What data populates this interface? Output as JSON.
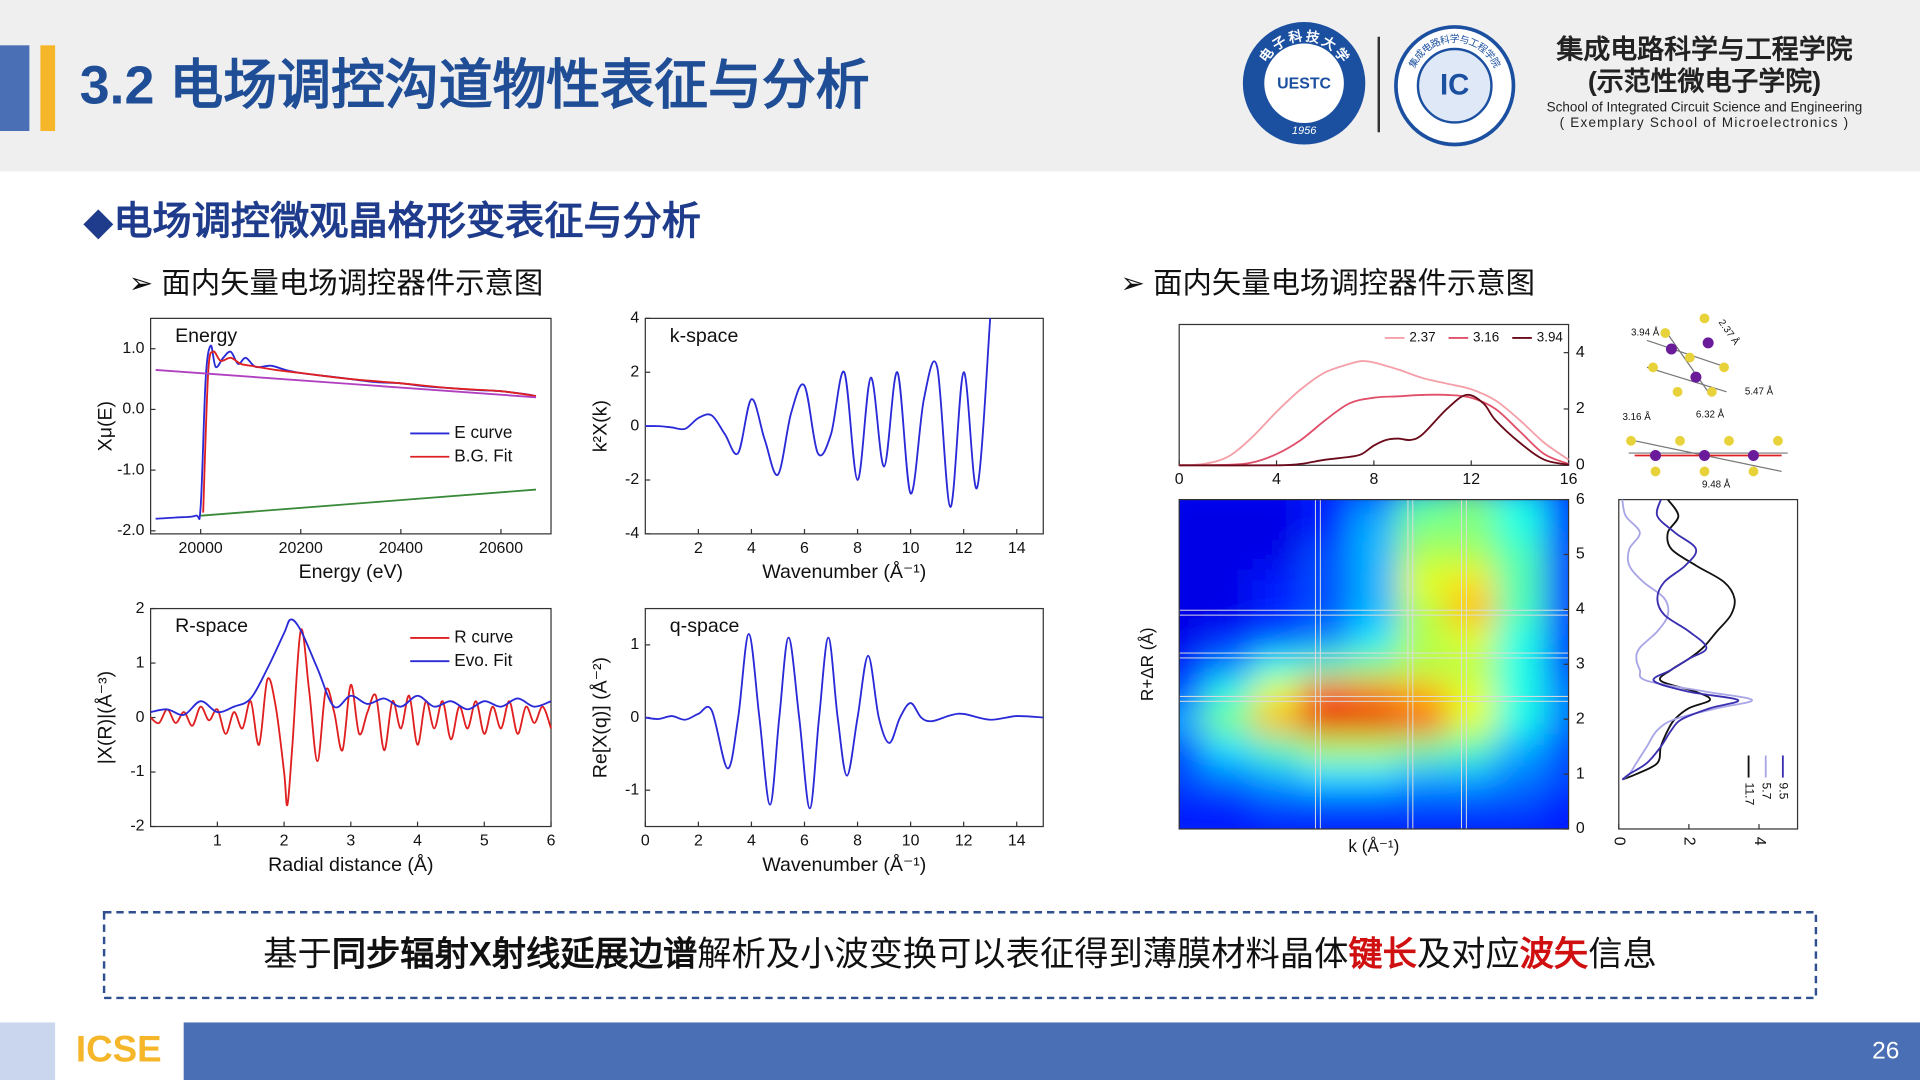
{
  "header": {
    "title": "3.2 电场调控沟道物性表征与分析",
    "logo_left": {
      "ring": "电 子 科 技 大 学",
      "center": "UESTC",
      "year": "1956"
    },
    "logo_right": {
      "ring": "集成电路科学与工程学院",
      "center": "IC"
    },
    "school_cn": "集成电路科学与工程学院",
    "school_cn_sub": "(示范性微电子学院)",
    "school_en": "School of Integrated Circuit Science and Engineering",
    "school_en_sub": "( Exemplary School of Microelectronics )"
  },
  "section": "◆电场调控微观晶格形变表征与分析",
  "subheads": [
    "➢ 面内矢量电场调控器件示意图",
    "➢ 面内矢量电场调控器件示意图"
  ],
  "structure_labels": [
    "3.94 Å",
    "2.37 Å",
    "5.47 Å",
    "3.16 Å",
    "6.32 Å",
    "9.48 Å"
  ],
  "summary": [
    {
      "text": "基于"
    },
    {
      "text": "同步辐射X射线延展边谱",
      "emphasis": "bold"
    },
    {
      "text": "解析及小波变换可以表征得到薄膜材料晶体"
    },
    {
      "text": "键长",
      "emphasis": "red"
    },
    {
      "text": "及对应"
    },
    {
      "text": "波矢",
      "emphasis": "red"
    },
    {
      "text": "信息"
    }
  ],
  "footer": {
    "brand": "ICSE",
    "page": "26"
  },
  "chart_data": [
    {
      "type": "line",
      "label": "Energy",
      "xlabel": "Energy (eV)",
      "ylabel": "Xμ(E)",
      "xlim": [
        19900,
        20700
      ],
      "ylim": [
        -2.05,
        1.5
      ],
      "xticks": [
        20000,
        20200,
        20400,
        20600
      ],
      "yticks": [
        {
          "value": 1,
          "label": "1.0"
        },
        {
          "value": 0,
          "label": "0.0"
        },
        {
          "value": -1,
          "label": "-1.0"
        },
        {
          "value": -2,
          "label": "-2.0"
        }
      ],
      "legend": "lower right",
      "series": [
        {
          "name": "E curve",
          "color": "#2a2ad8",
          "x": [
            19910,
            19950,
            19990,
            20000,
            20010,
            20020,
            20030,
            20045,
            20060,
            20075,
            20090,
            20110,
            20140,
            20170,
            20200,
            20250,
            20300,
            20350,
            20400,
            20450,
            20500,
            20550,
            20600,
            20650,
            20670
          ],
          "values": [
            -1.8,
            -1.78,
            -1.75,
            -1.6,
            0.5,
            1.05,
            0.7,
            0.85,
            0.95,
            0.75,
            0.85,
            0.7,
            0.72,
            0.65,
            0.6,
            0.55,
            0.5,
            0.45,
            0.43,
            0.38,
            0.35,
            0.32,
            0.3,
            0.25,
            0.22
          ]
        },
        {
          "name": "B.G. Fit",
          "color": "#e02020",
          "x": [
            20005,
            20015,
            20025,
            20040,
            20060,
            20080,
            20100,
            20150,
            20200,
            20300,
            20400,
            20500,
            20600,
            20670
          ],
          "values": [
            -1.7,
            0.6,
            0.95,
            0.8,
            0.85,
            0.75,
            0.72,
            0.65,
            0.6,
            0.5,
            0.43,
            0.35,
            0.3,
            0.22
          ]
        },
        {
          "color": "#b040c0",
          "x": [
            19910,
            20670
          ],
          "values": [
            0.65,
            0.2
          ]
        },
        {
          "color": "#3a8a3a",
          "x": [
            20000,
            20670
          ],
          "values": [
            -1.75,
            -1.32
          ]
        }
      ]
    },
    {
      "type": "line",
      "label": "k-space",
      "xlabel": "Wavenumber (Å⁻¹)",
      "ylabel": "k²X(k)",
      "xlim": [
        0,
        15
      ],
      "ylim": [
        -4,
        4
      ],
      "xticks": [
        2,
        4,
        6,
        8,
        10,
        12,
        14
      ],
      "yticks": [
        -4,
        -2,
        0,
        2,
        4
      ],
      "x": [
        0,
        0.5,
        1,
        1.5,
        2,
        2.5,
        3,
        3.5,
        4,
        4.5,
        5,
        5.5,
        6,
        6.5,
        7,
        7.5,
        8,
        8.5,
        9,
        9.5,
        10,
        10.5,
        11,
        11.5,
        12,
        12.5,
        13
      ],
      "series": [
        {
          "color": "#2a2ad8",
          "values": [
            0,
            0,
            -0.05,
            -0.1,
            0.3,
            0.4,
            -0.3,
            -1,
            1,
            -0.5,
            -1.8,
            0.5,
            1.5,
            -1,
            -0.3,
            2,
            -2,
            1.8,
            -1.5,
            2,
            -2.5,
            1,
            2.2,
            -3,
            2,
            -2.3,
            4
          ]
        }
      ]
    },
    {
      "type": "line",
      "label": "R-space",
      "xlabel": "Radial distance (Å)",
      "ylabel": "|X(R)|(Å⁻³)",
      "xlim": [
        0,
        6
      ],
      "ylim": [
        -2,
        2
      ],
      "xticks": [
        1,
        2,
        3,
        4,
        5,
        6
      ],
      "yticks": [
        -2,
        -1,
        0,
        1,
        2
      ],
      "legend": "upper right",
      "series": [
        {
          "name": "R curve",
          "color": "#e02020",
          "x": [
            0,
            0.125,
            0.25,
            0.375,
            0.5,
            0.625,
            0.75,
            0.875,
            1,
            1.125,
            1.25,
            1.375,
            1.5,
            1.625,
            1.75,
            1.875,
            2,
            2.05,
            2.125,
            2.25,
            2.375,
            2.5,
            2.625,
            2.75,
            2.875,
            3,
            3.125,
            3.25,
            3.375,
            3.5,
            3.625,
            3.75,
            3.875,
            4,
            4.125,
            4.25,
            4.375,
            4.5,
            4.625,
            4.75,
            4.875,
            5,
            5.125,
            5.25,
            5.375,
            5.5,
            5.625,
            5.75,
            5.875,
            6
          ],
          "values": [
            0,
            -0.1,
            0.15,
            -0.1,
            0.1,
            -0.15,
            0.2,
            -0.05,
            0.15,
            -0.3,
            0.1,
            -0.2,
            0.3,
            -0.5,
            0.7,
            0.2,
            -1,
            -1.6,
            -0.5,
            1.6,
            0.5,
            -0.8,
            0.5,
            0.1,
            -0.6,
            0.6,
            -0.3,
            0.1,
            0.4,
            -0.6,
            0.3,
            -0.2,
            0.4,
            -0.5,
            0.3,
            -0.2,
            0.3,
            -0.4,
            0.2,
            -0.2,
            0.3,
            -0.3,
            0.2,
            -0.2,
            0.3,
            -0.3,
            0.2,
            -0.1,
            0.2,
            -0.2
          ]
        },
        {
          "name": "Evo. Fit",
          "color": "#2a2ad8",
          "x": [
            0,
            0.25,
            0.5,
            0.75,
            1,
            1.25,
            1.5,
            1.75,
            2,
            2.1,
            2.25,
            2.5,
            2.75,
            3,
            3.25,
            3.5,
            3.75,
            4,
            4.25,
            4.5,
            4.75,
            5,
            5.25,
            5.5,
            5.75,
            6
          ],
          "values": [
            0.1,
            0.15,
            0.05,
            0.3,
            0.1,
            0.2,
            0.35,
            0.9,
            1.55,
            1.8,
            1.6,
            0.9,
            0.2,
            0.4,
            0.25,
            0.35,
            0.2,
            0.4,
            0.2,
            0.3,
            0.15,
            0.3,
            0.2,
            0.35,
            0.2,
            0.3
          ]
        }
      ]
    },
    {
      "type": "line",
      "label": "q-space",
      "xlabel": "Wavenumber (Å⁻¹)",
      "ylabel": "Re[X(q)] (Å⁻²)",
      "xlim": [
        0,
        15
      ],
      "ylim": [
        -1.5,
        1.5
      ],
      "xticks": [
        0,
        2,
        4,
        6,
        8,
        10,
        12,
        14
      ],
      "yticks": [
        -1,
        0,
        1
      ],
      "x": [
        0,
        0.5,
        1,
        1.5,
        2,
        2.5,
        3.1,
        3.5,
        3.9,
        4.3,
        4.7,
        5.05,
        5.4,
        5.8,
        6.2,
        6.55,
        6.9,
        7.25,
        7.6,
        8,
        8.4,
        8.8,
        9.2,
        9.6,
        10,
        10.4,
        10.8,
        11.5,
        12,
        13,
        14,
        15
      ],
      "series": [
        {
          "color": "#2a2ad8",
          "values": [
            0,
            -0.02,
            0.02,
            -0.03,
            0.05,
            0.1,
            -0.7,
            0,
            1.15,
            0,
            -1.2,
            0,
            1.1,
            0,
            -1.25,
            0,
            1.1,
            0,
            -0.8,
            0,
            0.85,
            0,
            -0.35,
            0,
            0.2,
            0,
            -0.05,
            0.03,
            0.05,
            -0.03,
            0.02,
            0
          ]
        }
      ]
    },
    {
      "type": "line",
      "xlim": [
        0,
        16
      ],
      "ylim": [
        0,
        5
      ],
      "xticks": [
        0,
        4,
        8,
        12,
        16
      ],
      "yticks": [
        0,
        2,
        4
      ],
      "yaxis_side": "right",
      "legend": "top",
      "series": [
        {
          "name": "2.37",
          "color": "#f4a0a8",
          "x": [
            0,
            1,
            2,
            3,
            4,
            5,
            6,
            7,
            7.5,
            8,
            9,
            10,
            11,
            12,
            13,
            14,
            15,
            16
          ],
          "values": [
            0,
            0.05,
            0.3,
            1,
            1.9,
            2.7,
            3.3,
            3.6,
            3.7,
            3.65,
            3.4,
            3.1,
            2.9,
            2.7,
            2.3,
            1.6,
            0.8,
            0.2
          ]
        },
        {
          "name": "3.16",
          "color": "#e0506a",
          "x": [
            0,
            2,
            3,
            4,
            5,
            6,
            7,
            8,
            9,
            10,
            11,
            12,
            13,
            14,
            15,
            16
          ],
          "values": [
            0,
            0.02,
            0.1,
            0.4,
            0.9,
            1.6,
            2.2,
            2.4,
            2.45,
            2.5,
            2.5,
            2.4,
            2,
            1.2,
            0.4,
            0.05
          ]
        },
        {
          "name": "3.94",
          "color": "#6b0a1a",
          "x": [
            0,
            4,
            5,
            6,
            7,
            7.5,
            8,
            8.5,
            9,
            9.5,
            10,
            11,
            11.8,
            12.5,
            13,
            14,
            15,
            16
          ],
          "values": [
            0,
            0,
            0.05,
            0.2,
            0.3,
            0.4,
            0.7,
            0.9,
            0.95,
            0.9,
            1.1,
            2,
            2.5,
            2.2,
            1.6,
            0.8,
            0.2,
            0.02
          ]
        }
      ]
    },
    {
      "type": "heatmap",
      "xlabel": "k (Å⁻¹)",
      "ylabel": "R+ΔR (Å)",
      "xlim": [
        0,
        16
      ],
      "ylim": [
        0,
        6
      ],
      "yticks": [
        0,
        1,
        2,
        3,
        4,
        5,
        6
      ],
      "yaxis_side": "right",
      "x": [
        0,
        2,
        4,
        6,
        8,
        10,
        12,
        14,
        16
      ],
      "y": [
        0,
        0.5,
        1,
        1.5,
        2,
        2.5,
        3,
        3.5,
        4,
        4.5,
        5,
        5.5,
        6
      ],
      "z": [
        [
          0.15,
          0.15,
          0.15,
          0.15,
          0.15,
          0.15,
          0.15,
          0.15,
          0.15
        ],
        [
          0.15,
          0.15,
          0.2,
          0.2,
          0.2,
          0.2,
          0.2,
          0.2,
          0.15
        ],
        [
          0.2,
          0.25,
          0.3,
          0.35,
          0.35,
          0.3,
          0.3,
          0.25,
          0.2
        ],
        [
          0.2,
          0.35,
          0.45,
          0.55,
          0.55,
          0.5,
          0.45,
          0.3,
          0.2
        ],
        [
          0.3,
          0.5,
          0.7,
          0.9,
          0.9,
          0.8,
          0.6,
          0.4,
          0.25
        ],
        [
          0.2,
          0.4,
          0.6,
          0.8,
          0.75,
          0.7,
          0.6,
          0.4,
          0.25
        ],
        [
          0.15,
          0.25,
          0.4,
          0.45,
          0.5,
          0.55,
          0.55,
          0.4,
          0.2
        ],
        [
          0.1,
          0.15,
          0.2,
          0.25,
          0.35,
          0.55,
          0.6,
          0.4,
          0.2
        ],
        [
          0.1,
          0.1,
          0.15,
          0.2,
          0.3,
          0.55,
          0.7,
          0.45,
          0.2
        ],
        [
          0.1,
          0.1,
          0.15,
          0.2,
          0.3,
          0.6,
          0.65,
          0.45,
          0.2
        ],
        [
          0.1,
          0.1,
          0.1,
          0.2,
          0.3,
          0.55,
          0.55,
          0.45,
          0.2
        ],
        [
          0.1,
          0.1,
          0.1,
          0.15,
          0.3,
          0.5,
          0.5,
          0.4,
          0.2
        ],
        [
          0.1,
          0.1,
          0.1,
          0.15,
          0.25,
          0.45,
          0.5,
          0.4,
          0.2
        ]
      ]
    },
    {
      "type": "line",
      "orientation": "vertical",
      "xlim": [
        0,
        5.1
      ],
      "ylim": [
        0,
        6
      ],
      "xticks": [
        0,
        2,
        4
      ],
      "legend": "lower right",
      "y": [
        0.9,
        1,
        1.2,
        1.5,
        1.8,
        2,
        2.2,
        2.35,
        2.5,
        2.7,
        2.9,
        3.1,
        3.3,
        3.6,
        3.9,
        4.2,
        4.5,
        4.8,
        5.1,
        5.4,
        5.7,
        6
      ],
      "series": [
        {
          "name": "11.7",
          "color": "#111111",
          "values": [
            0.1,
            0.5,
            1.1,
            1.2,
            1.4,
            1.6,
            2,
            2.6,
            2.2,
            1.2,
            1.5,
            2,
            2.4,
            2.8,
            3.2,
            3.3,
            3,
            2.2,
            1.5,
            1.4,
            1.7,
            1.4
          ]
        },
        {
          "name": "5.7",
          "color": "#a9a6e6",
          "values": [
            0.1,
            0.3,
            0.5,
            0.8,
            1.1,
            1.6,
            2.8,
            3.8,
            2.5,
            0.8,
            0.6,
            0.5,
            0.6,
            1.1,
            1.4,
            1.3,
            0.7,
            0.3,
            0.3,
            0.6,
            0.2,
            0.1
          ]
        },
        {
          "name": "9.5",
          "color": "#3a2fb0",
          "values": [
            0.1,
            0.3,
            0.8,
            1.2,
            1.5,
            1.8,
            2.6,
            3.4,
            2,
            1,
            1.5,
            2,
            2.5,
            2,
            1.3,
            1.1,
            1.3,
            1.9,
            2.2,
            1.6,
            1.1,
            1.2
          ]
        }
      ]
    }
  ]
}
